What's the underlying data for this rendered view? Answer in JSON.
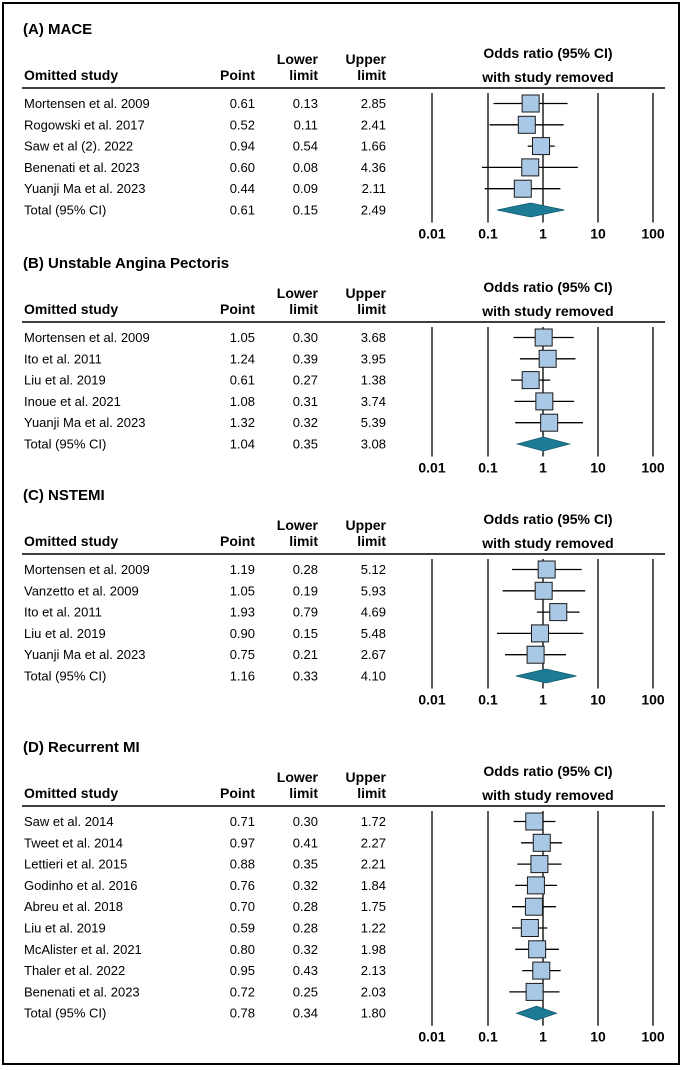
{
  "chart_data": [
    {
      "type": "forest",
      "title": "(A) MACE",
      "columns": {
        "study": "Omitted study",
        "point": "Point",
        "lower_1": "Lower",
        "lower_2": "limit",
        "upper_1": "Upper",
        "upper_2": "limit",
        "plot_1": "Odds ratio (95% CI)",
        "plot_2": "with study removed"
      },
      "axis": {
        "scale": "log",
        "ticks": [
          "0.01",
          "0.1",
          "1",
          "10",
          "100"
        ],
        "range": [
          0.01,
          100
        ]
      },
      "rows": [
        {
          "study": "Mortensen et al. 2009",
          "point": "0.61",
          "lower": "0.13",
          "upper": "2.85"
        },
        {
          "study": "Rogowski et al. 2017",
          "point": "0.52",
          "lower": "0.11",
          "upper": "2.41"
        },
        {
          "study": "Saw et al (2). 2022",
          "point": "0.94",
          "lower": "0.54",
          "upper": "1.66"
        },
        {
          "study": "Benenati et al. 2023",
          "point": "0.60",
          "lower": "0.08",
          "upper": "4.36"
        },
        {
          "study": "Yuanji Ma et al. 2023",
          "point": "0.44",
          "lower": "0.09",
          "upper": "2.11"
        }
      ],
      "total": {
        "study": "Total (95% CI)",
        "point": "0.61",
        "lower": "0.15",
        "upper": "2.49"
      }
    },
    {
      "type": "forest",
      "title": "(B) Unstable Angina Pectoris",
      "columns": {
        "study": "Omitted study",
        "point": "Point",
        "lower_1": "Lower",
        "lower_2": "limit",
        "upper_1": "Upper",
        "upper_2": "limit",
        "plot_1": "Odds ratio (95% CI)",
        "plot_2": "with study removed"
      },
      "axis": {
        "scale": "log",
        "ticks": [
          "0.01",
          "0.1",
          "1",
          "10",
          "100"
        ],
        "range": [
          0.01,
          100
        ]
      },
      "rows": [
        {
          "study": "Mortensen et al. 2009",
          "point": "1.05",
          "lower": "0.30",
          "upper": "3.68"
        },
        {
          "study": "Ito et al. 2011",
          "point": "1.24",
          "lower": "0.39",
          "upper": "3.95"
        },
        {
          "study": "Liu et al. 2019",
          "point": "0.61",
          "lower": "0.27",
          "upper": "1.38"
        },
        {
          "study": "Inoue et al. 2021",
          "point": "1.08",
          "lower": "0.31",
          "upper": "3.74"
        },
        {
          "study": "Yuanji Ma et al. 2023",
          "point": "1.32",
          "lower": "0.32",
          "upper": "5.39"
        }
      ],
      "total": {
        "study": "Total (95% CI)",
        "point": "1.04",
        "lower": "0.35",
        "upper": "3.08"
      }
    },
    {
      "type": "forest",
      "title": "(C) NSTEMI",
      "columns": {
        "study": "Omitted study",
        "point": "Point",
        "lower_1": "Lower",
        "lower_2": "limit",
        "upper_1": "Upper",
        "upper_2": "limit",
        "plot_1": "Odds ratio (95% CI)",
        "plot_2": "with study removed"
      },
      "axis": {
        "scale": "log",
        "ticks": [
          "0.01",
          "0.1",
          "1",
          "10",
          "100"
        ],
        "range": [
          0.01,
          100
        ]
      },
      "rows": [
        {
          "study": "Mortensen et al. 2009",
          "point": "1.19",
          "lower": "0.28",
          "upper": "5.12"
        },
        {
          "study": "Vanzetto et al. 2009",
          "point": "1.05",
          "lower": "0.19",
          "upper": "5.93"
        },
        {
          "study": "Ito et al. 2011",
          "point": "1.93",
          "lower": "0.79",
          "upper": "4.69"
        },
        {
          "study": "Liu et al. 2019",
          "point": "0.90",
          "lower": "0.15",
          "upper": "5.48"
        },
        {
          "study": "Yuanji Ma et al. 2023",
          "point": "0.75",
          "lower": "0.21",
          "upper": "2.67"
        }
      ],
      "total": {
        "study": "Total (95% CI)",
        "point": "1.16",
        "lower": "0.33",
        "upper": "4.10"
      }
    },
    {
      "type": "forest",
      "title": "(D) Recurrent MI",
      "columns": {
        "study": "Omitted study",
        "point": "Point",
        "lower_1": "Lower",
        "lower_2": "limit",
        "upper_1": "Upper",
        "upper_2": "limit",
        "plot_1": "Odds ratio (95% CI)",
        "plot_2": "with study removed"
      },
      "axis": {
        "scale": "log",
        "ticks": [
          "0.01",
          "0.1",
          "1",
          "10",
          "100"
        ],
        "range": [
          0.01,
          100
        ]
      },
      "rows": [
        {
          "study": "Saw et al. 2014",
          "point": "0.71",
          "lower": "0.30",
          "upper": "1.72"
        },
        {
          "study": "Tweet et al. 2014",
          "point": "0.97",
          "lower": "0.41",
          "upper": "2.27"
        },
        {
          "study": "Lettieri et al. 2015",
          "point": "0.88",
          "lower": "0.35",
          "upper": "2.21"
        },
        {
          "study": "Godinho et al. 2016",
          "point": "0.76",
          "lower": "0.32",
          "upper": "1.84"
        },
        {
          "study": "Abreu et al. 2018",
          "point": "0.70",
          "lower": "0.28",
          "upper": "1.75"
        },
        {
          "study": "Liu et al. 2019",
          "point": "0.59",
          "lower": "0.28",
          "upper": "1.22"
        },
        {
          "study": "McAlister et al. 2021",
          "point": "0.80",
          "lower": "0.32",
          "upper": "1.98"
        },
        {
          "study": "Thaler et al. 2022",
          "point": "0.95",
          "lower": "0.43",
          "upper": "2.13"
        },
        {
          "study": "Benenati et al. 2023",
          "point": "0.72",
          "lower": "0.25",
          "upper": "2.03"
        }
      ],
      "total": {
        "study": "Total (95% CI)",
        "point": "0.78",
        "lower": "0.34",
        "upper": "1.80"
      }
    }
  ],
  "colors": {
    "box_fill": "#a9c8e6",
    "box_stroke": "#1a1a1a",
    "diamond": "#1d7b96",
    "line": "#000000"
  }
}
